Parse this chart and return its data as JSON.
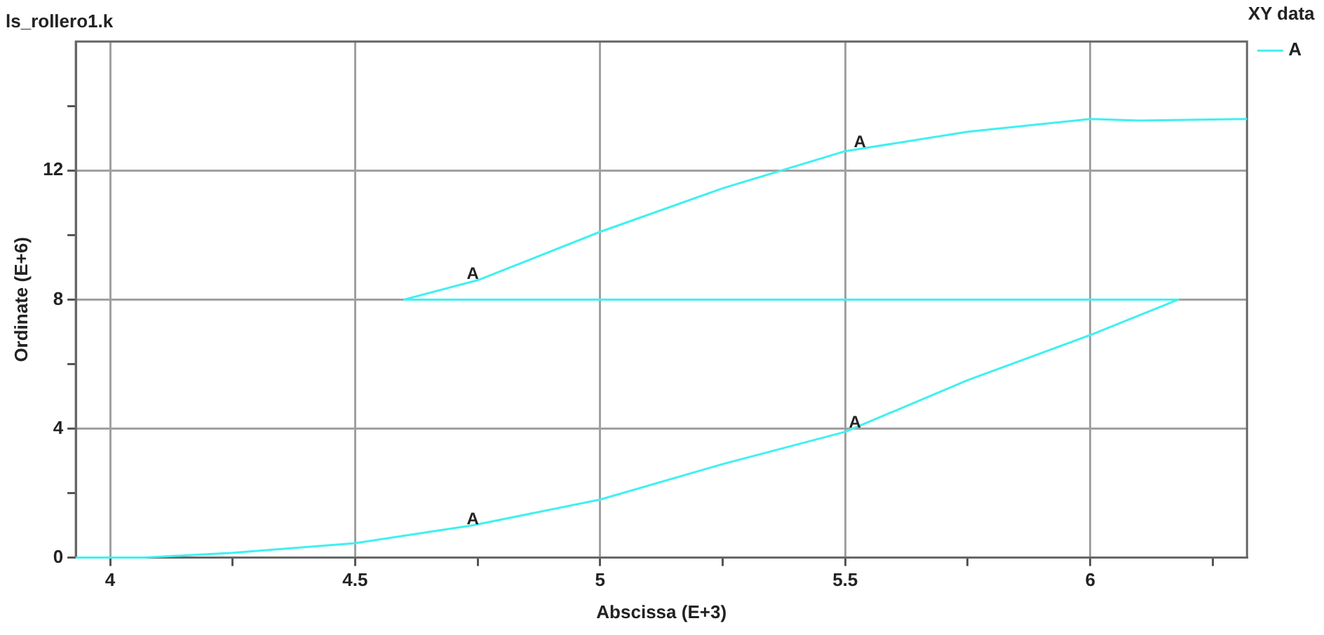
{
  "chart_data": {
    "type": "line",
    "title": "ls_rollero1.k",
    "xlabel": "Abscissa (E+3)",
    "ylabel": "Ordinate (E+6)",
    "legend_title": "XY data",
    "legend": "right",
    "grid": true,
    "marker": "none",
    "line_style": "solid",
    "xlim": [
      3.93,
      6.32
    ],
    "ylim": [
      0,
      16
    ],
    "xticks": [
      4,
      {
        "value": 4.25,
        "label": null
      },
      4.5,
      {
        "value": 4.75,
        "label": null
      },
      5,
      {
        "value": 5.25,
        "label": null
      },
      5.5,
      {
        "value": 5.75,
        "label": null
      },
      6,
      {
        "value": 6.25,
        "label": null
      }
    ],
    "yticks": [
      0,
      {
        "value": 2,
        "label": null
      },
      4,
      {
        "value": 6,
        "label": null
      },
      8,
      {
        "value": 10,
        "label": null
      },
      12,
      {
        "value": 14,
        "label": null
      }
    ],
    "series": [
      {
        "name": "A",
        "color": "#40f0f0",
        "x": [
          3.93,
          4.07,
          4.25,
          4.5,
          4.74,
          5,
          5.25,
          5.5,
          5.75,
          6,
          6.18,
          4.6,
          4.75,
          5,
          5.25,
          5.5,
          5.75,
          6,
          6.1,
          6.32
        ],
        "values": [
          0,
          0,
          0.15,
          0.45,
          1.0,
          1.8,
          2.9,
          3.9,
          5.5,
          6.9,
          8,
          8,
          8.6,
          10.1,
          11.45,
          12.6,
          13.2,
          13.6,
          13.55,
          13.6
        ]
      }
    ],
    "annotations": [
      {
        "text": "A",
        "x": 4.74,
        "y": 1.0
      },
      {
        "text": "A",
        "x": 5.52,
        "y": 4.0
      },
      {
        "text": "A",
        "x": 4.74,
        "y": 8.6
      },
      {
        "text": "A",
        "x": 5.53,
        "y": 12.7
      }
    ]
  }
}
